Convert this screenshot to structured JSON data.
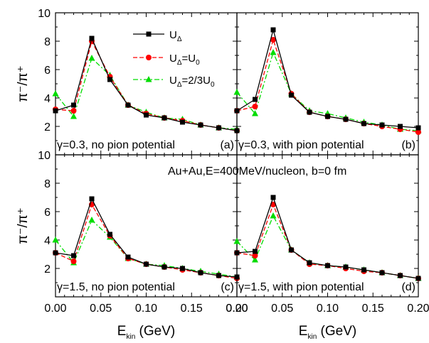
{
  "chart_data": {
    "type": "line",
    "layout": "2x2 panel grid",
    "x": [
      0.0,
      0.02,
      0.04,
      0.06,
      0.08,
      0.1,
      0.12,
      0.14,
      0.16,
      0.18,
      0.2
    ],
    "xlim": [
      0.0,
      0.2
    ],
    "ylim": [
      0,
      10
    ],
    "x_ticks": [
      "0.00",
      "0.05",
      "0.10",
      "0.15",
      "0.20"
    ],
    "y_ticks": [
      "2",
      "4",
      "6",
      "8",
      "10"
    ],
    "xlabel": "E",
    "xlabel_sub": "kin",
    "xlabel_unit": " (GeV)",
    "ylabel": "π⁻/π⁺",
    "global_annotation": "Au+Au,E=400MeV/nucleon, b=0 fm",
    "legend": {
      "placement": "top-left panel, upper right",
      "entries": [
        {
          "main": "U",
          "sub": "Δ",
          "rest": "",
          "sub2": "",
          "color": "#000000",
          "marker": "square",
          "dash": "solid"
        },
        {
          "main": "U",
          "sub": "Δ",
          "rest": "=U",
          "sub2": "0",
          "color": "#ff0000",
          "marker": "circle",
          "dash": "dash"
        },
        {
          "main": "U",
          "sub": "Δ",
          "rest": "=2/3U",
          "sub2": "0",
          "color": "#00dd00",
          "marker": "triangle",
          "dash": "dashdot"
        }
      ]
    },
    "panels": [
      {
        "label": "(a)",
        "annotation": "γ=0.3, no pion potential",
        "series": [
          {
            "values": [
              3.1,
              3.5,
              8.2,
              5.3,
              3.5,
              2.8,
              2.6,
              2.3,
              2.1,
              1.9,
              1.7
            ]
          },
          {
            "values": [
              3.2,
              3.1,
              8.0,
              5.5,
              3.5,
              2.9,
              2.6,
              2.4,
              2.1,
              1.9,
              1.7
            ]
          },
          {
            "values": [
              4.3,
              2.7,
              6.8,
              5.6,
              3.5,
              3.0,
              2.6,
              2.5,
              2.1,
              1.9,
              1.8
            ]
          }
        ]
      },
      {
        "label": "(b)",
        "annotation": "γ=0.3, with pion potential",
        "series": [
          {
            "values": [
              3.1,
              3.9,
              8.8,
              4.2,
              3.0,
              2.7,
              2.5,
              2.2,
              2.1,
              2.0,
              1.9
            ]
          },
          {
            "values": [
              3.1,
              3.4,
              8.1,
              4.3,
              3.0,
              2.7,
              2.5,
              2.2,
              2.0,
              1.8,
              1.6
            ]
          },
          {
            "values": [
              4.4,
              2.9,
              7.2,
              4.3,
              3.1,
              2.9,
              2.6,
              2.3,
              2.1,
              1.8,
              1.7
            ]
          }
        ]
      },
      {
        "label": "(c)",
        "annotation": "γ=1.5, no pion potential",
        "series": [
          {
            "values": [
              3.1,
              2.9,
              6.9,
              4.4,
              2.8,
              2.3,
              2.1,
              2.0,
              1.7,
              1.5,
              1.4
            ]
          },
          {
            "values": [
              3.1,
              2.5,
              6.5,
              4.3,
              2.7,
              2.3,
              2.1,
              1.9,
              1.7,
              1.5,
              1.3
            ]
          },
          {
            "values": [
              4.0,
              2.4,
              5.4,
              4.2,
              2.7,
              2.3,
              2.2,
              2.0,
              1.8,
              1.6,
              1.4
            ]
          }
        ]
      },
      {
        "label": "(d)",
        "annotation": "γ=1.5, with pion potential",
        "series": [
          {
            "values": [
              3.1,
              3.2,
              7.0,
              3.3,
              2.4,
              2.2,
              2.1,
              1.9,
              1.7,
              1.5,
              1.3
            ]
          },
          {
            "values": [
              3.1,
              2.9,
              6.5,
              3.3,
              2.3,
              2.2,
              2.0,
              1.8,
              1.7,
              1.5,
              1.3
            ]
          },
          {
            "values": [
              3.9,
              2.6,
              5.7,
              3.3,
              2.4,
              2.2,
              2.1,
              1.9,
              1.7,
              1.5,
              1.3
            ]
          }
        ]
      }
    ]
  }
}
